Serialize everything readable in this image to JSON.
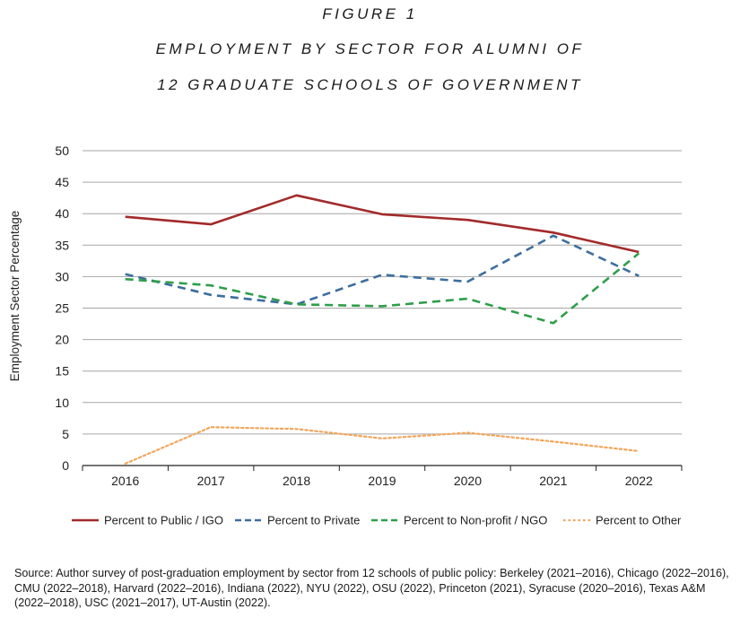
{
  "figure": {
    "label": "FIGURE 1",
    "title_line1": "EMPLOYMENT BY SECTOR FOR ALUMNI OF",
    "title_line2": "12 GRADUATE SCHOOLS OF GOVERNMENT"
  },
  "source": "Source: Author survey of post-graduation employment by sector from 12 schools of public policy: Berkeley (2021–2016), Chicago (2022–2016), CMU (2022–2018), Harvard (2022–2016), Indiana (2022), NYU (2022), OSU (2022), Princeton (2021), Syracuse (2020–2016), Texas A&M (2022–2018), USC (2021–2017), UT-Austin (2022).",
  "chart_data": {
    "type": "line",
    "title": "",
    "xlabel": "",
    "ylabel": "Employment Sector Percentage",
    "categories": [
      "2016",
      "2017",
      "2018",
      "2019",
      "2020",
      "2021",
      "2022"
    ],
    "ylim": [
      0,
      50
    ],
    "yticks": [
      0,
      5,
      10,
      15,
      20,
      25,
      30,
      35,
      40,
      45,
      50
    ],
    "grid": "horizontal",
    "legend_position": "bottom",
    "series": [
      {
        "name": "Percent to Public / IGO",
        "color": "#A32A2A",
        "dash": "solid",
        "values": [
          39.5,
          38.3,
          42.9,
          39.9,
          39.0,
          37.0,
          33.9
        ]
      },
      {
        "name": "Percent to Private",
        "color": "#3C6E9E",
        "dash": "dashed",
        "values": [
          30.4,
          27.1,
          25.6,
          30.3,
          29.2,
          36.5,
          30.1
        ]
      },
      {
        "name": "Percent to Non-profit / NGO",
        "color": "#2E9E4A",
        "dash": "dashed",
        "values": [
          29.6,
          28.6,
          25.6,
          25.3,
          26.5,
          22.6,
          33.7
        ]
      },
      {
        "name": "Percent to Other",
        "color": "#F2A65A",
        "dash": "dotted",
        "values": [
          0.3,
          6.1,
          5.8,
          4.3,
          5.2,
          3.8,
          2.3
        ]
      }
    ]
  }
}
